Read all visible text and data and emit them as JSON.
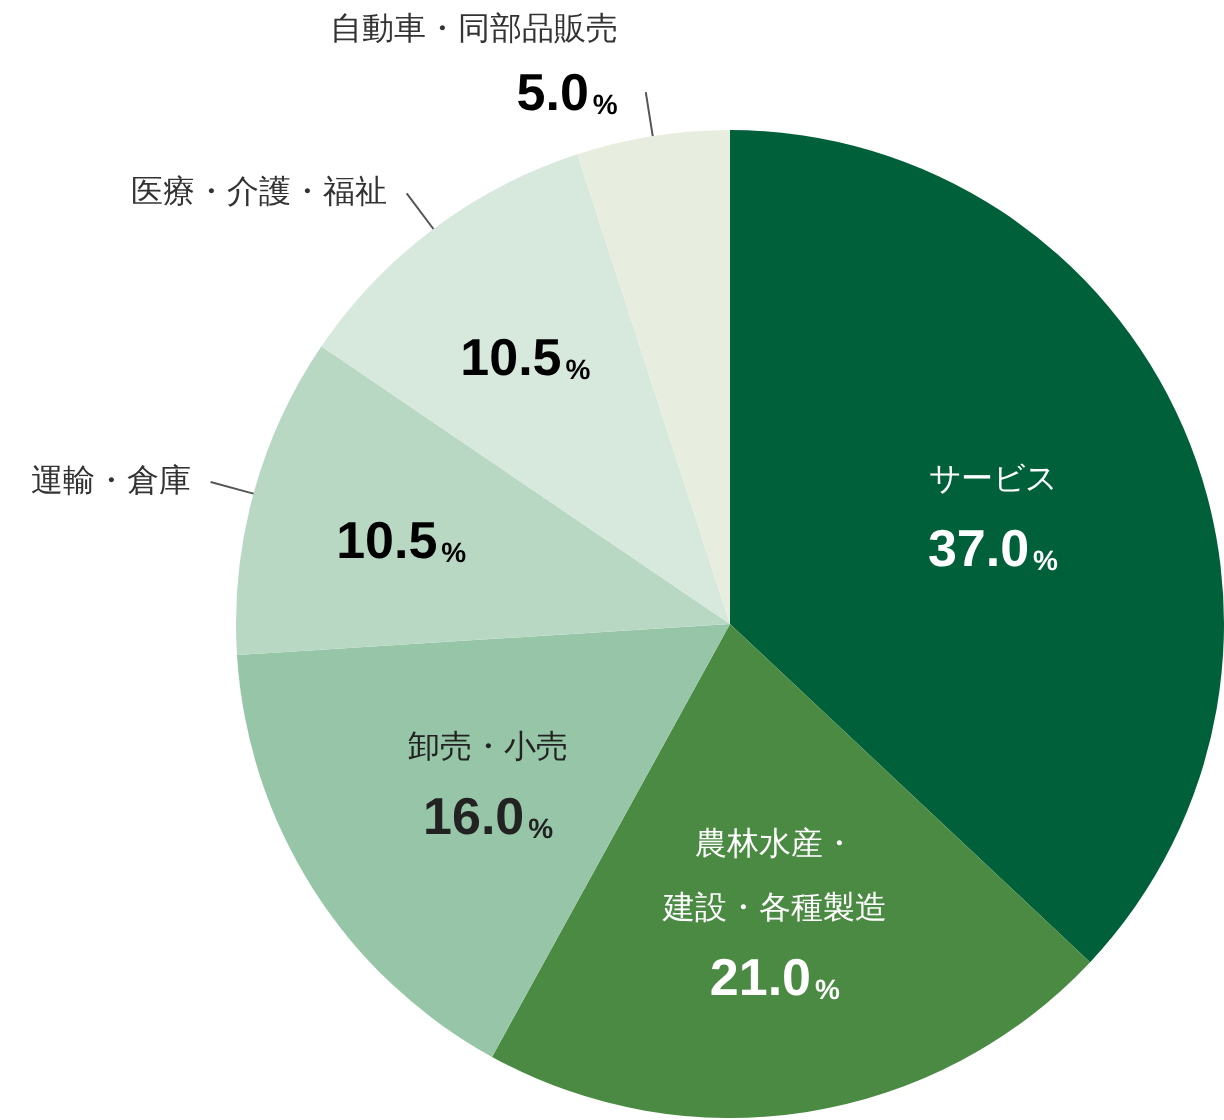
{
  "chart_data": {
    "type": "pie",
    "categories": [
      "サービス",
      "農林水産・建設・各種製造",
      "卸売・小売",
      "運輸・倉庫",
      "医療・介護・福祉",
      "自動車・同部品販売"
    ],
    "values": [
      37.0,
      21.0,
      16.0,
      10.5,
      10.5,
      5.0
    ],
    "value_labels": [
      "37.0%",
      "21.0%",
      "16.0%",
      "10.5%",
      "10.5%",
      "5.0%"
    ],
    "colors": [
      "#00603a",
      "#4b8a43",
      "#96c6a7",
      "#b8d8c4",
      "#d7e8dd",
      "#e8eedf"
    ]
  }
}
